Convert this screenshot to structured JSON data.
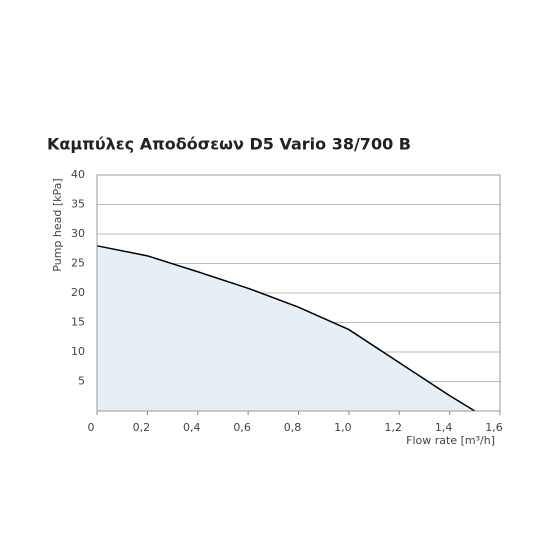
{
  "chart_data": {
    "type": "area",
    "title": "Καμπύλες Αποδόσεων D5 Vario 38/700 B",
    "y_label": "Pump head [kPa]",
    "x_label": "Flow rate [m³/h]",
    "x": [
      0,
      0.2,
      0.4,
      0.6,
      0.8,
      1.0,
      1.2,
      1.4,
      1.5
    ],
    "series": [
      {
        "color": "#000000",
        "fill": "#e6eef6",
        "values": [
          28,
          26.3,
          23.6,
          20.8,
          17.6,
          13.8,
          8.2,
          2.6,
          0
        ]
      }
    ],
    "xlim": [
      0,
      1.6
    ],
    "ylim": [
      0,
      40
    ],
    "xticks": [
      0,
      {
        "value": 0.2,
        "label": "0,2"
      },
      {
        "value": 0.4,
        "label": "0,4"
      },
      {
        "value": 0.6,
        "label": "0,6"
      },
      {
        "value": 0.8,
        "label": "0,8"
      },
      {
        "value": 1.0,
        "label": "1,0"
      },
      {
        "value": 1.2,
        "label": "1,2"
      },
      {
        "value": 1.4,
        "label": "1,4"
      },
      {
        "value": 1.6,
        "label": "1,6"
      }
    ],
    "yticks": [
      5,
      10,
      15,
      20,
      25,
      30,
      35,
      40
    ],
    "grid": true
  }
}
